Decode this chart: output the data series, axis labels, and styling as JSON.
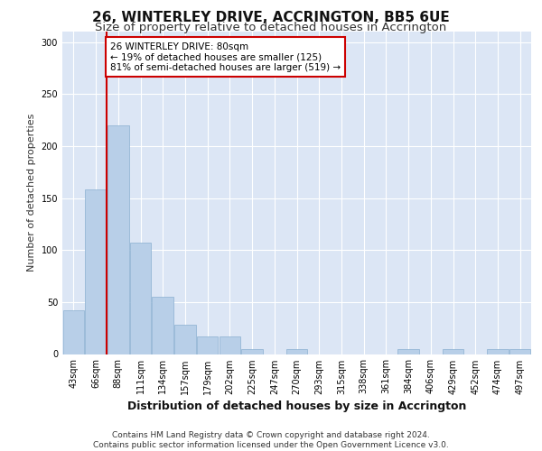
{
  "title1": "26, WINTERLEY DRIVE, ACCRINGTON, BB5 6UE",
  "title2": "Size of property relative to detached houses in Accrington",
  "xlabel": "Distribution of detached houses by size in Accrington",
  "ylabel": "Number of detached properties",
  "bar_labels": [
    "43sqm",
    "66sqm",
    "88sqm",
    "111sqm",
    "134sqm",
    "157sqm",
    "179sqm",
    "202sqm",
    "225sqm",
    "247sqm",
    "270sqm",
    "293sqm",
    "315sqm",
    "338sqm",
    "361sqm",
    "384sqm",
    "406sqm",
    "429sqm",
    "452sqm",
    "474sqm",
    "497sqm"
  ],
  "bar_values": [
    42,
    158,
    220,
    107,
    55,
    28,
    17,
    17,
    5,
    0,
    5,
    0,
    0,
    0,
    0,
    5,
    0,
    5,
    0,
    5,
    5
  ],
  "bar_color": "#b8cfe8",
  "bar_edge_color": "#8ab0d0",
  "annotation_text": "26 WINTERLEY DRIVE: 80sqm\n← 19% of detached houses are smaller (125)\n81% of semi-detached houses are larger (519) →",
  "annotation_box_color": "#ffffff",
  "annotation_box_edge_color": "#cc0000",
  "red_line_color": "#cc0000",
  "background_color": "#dce6f5",
  "footer_text": "Contains HM Land Registry data © Crown copyright and database right 2024.\nContains public sector information licensed under the Open Government Licence v3.0.",
  "ylim": [
    0,
    310
  ],
  "yticks": [
    0,
    50,
    100,
    150,
    200,
    250,
    300
  ],
  "title1_fontsize": 11,
  "title2_fontsize": 9.5,
  "xlabel_fontsize": 9,
  "ylabel_fontsize": 8,
  "tick_fontsize": 7,
  "footer_fontsize": 6.5,
  "annot_fontsize": 7.5
}
